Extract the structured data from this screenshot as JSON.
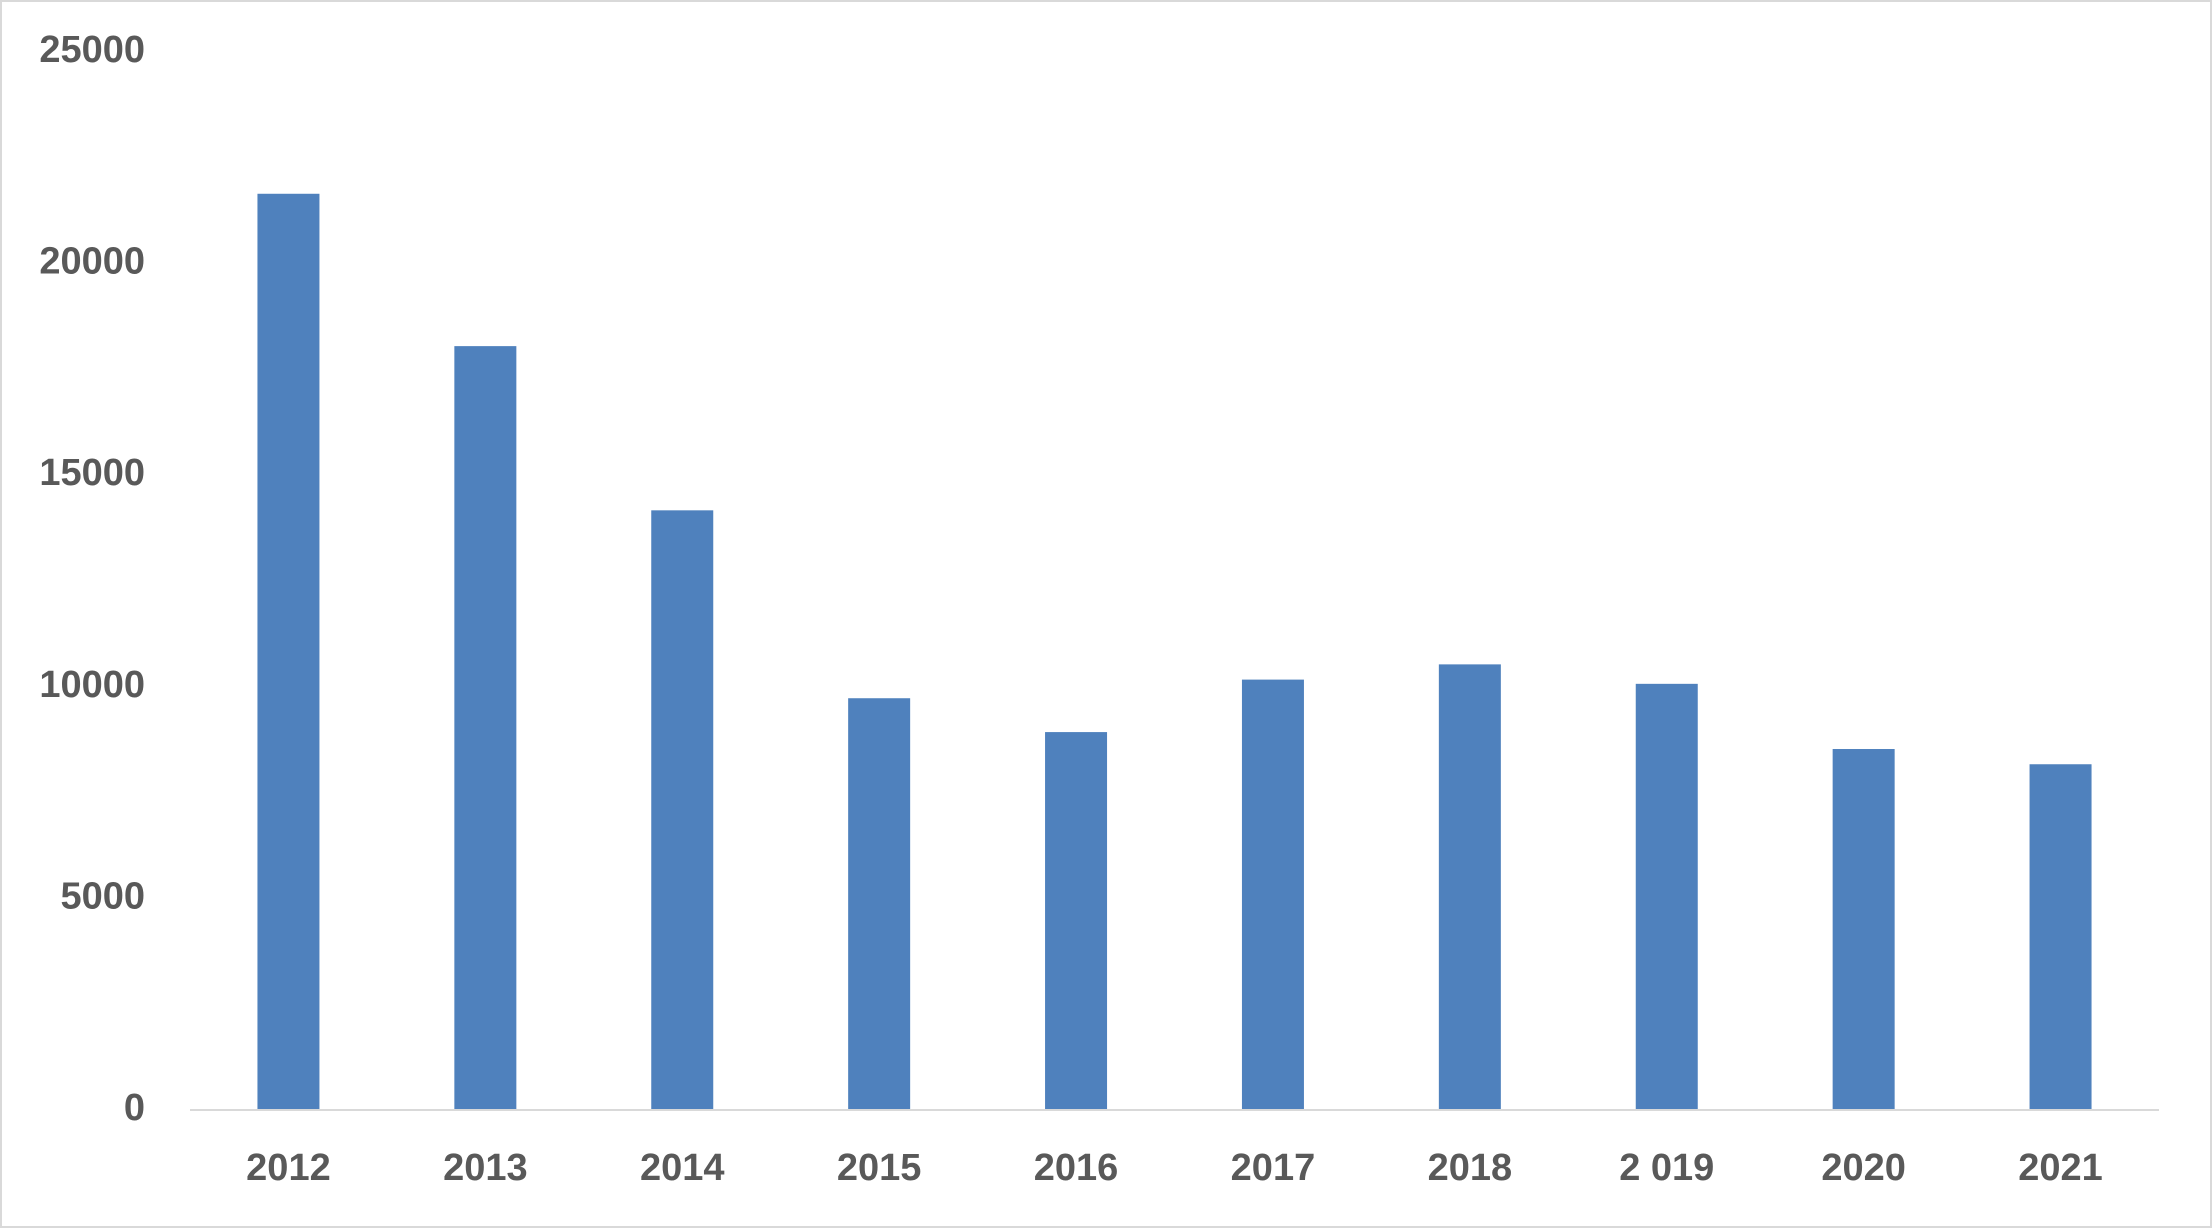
{
  "chart_data": {
    "type": "bar",
    "categories": [
      "2012",
      "2013",
      "2014",
      "2015",
      "2016",
      "2017",
      "2018",
      "2 019",
      "2020",
      "2021"
    ],
    "values": [
      21650,
      18050,
      14170,
      9730,
      8930,
      10170,
      10530,
      10070,
      8530,
      8170
    ],
    "color": "#4f81bd",
    "ylim": [
      0,
      25000
    ],
    "yticks": [
      0,
      5000,
      10000,
      15000,
      20000,
      25000
    ],
    "grid": false
  }
}
